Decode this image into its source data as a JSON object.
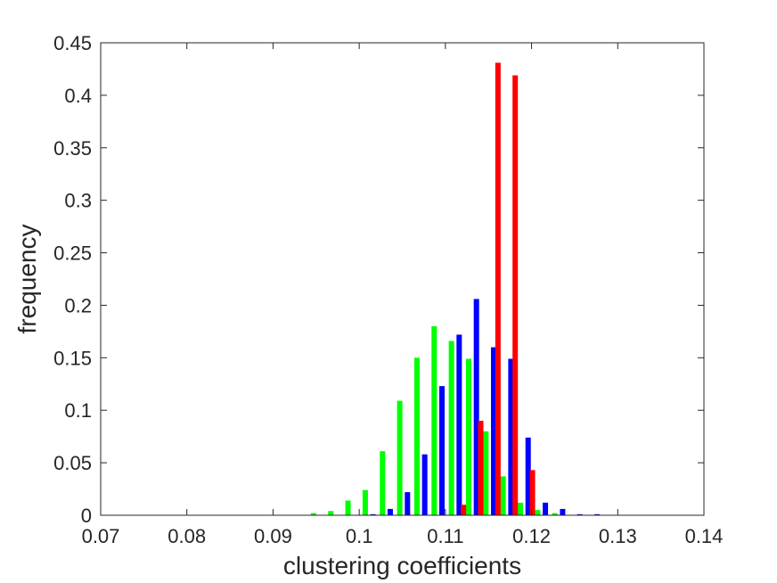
{
  "chart_data": {
    "type": "bar",
    "title": "",
    "xlabel": "clustering coefficients",
    "ylabel": "frequency",
    "xlim": [
      0.07,
      0.14
    ],
    "ylim": [
      0,
      0.45
    ],
    "xticks": [
      0.07,
      0.08,
      0.09,
      0.1,
      0.11,
      0.12,
      0.13,
      0.14
    ],
    "xtick_labels": [
      "0.07",
      "0.08",
      "0.09",
      "0.1",
      "0.11",
      "0.12",
      "0.13",
      "0.14"
    ],
    "yticks": [
      0,
      0.05,
      0.1,
      0.15,
      0.2,
      0.25,
      0.3,
      0.35,
      0.4,
      0.45
    ],
    "ytick_labels": [
      "0",
      "0.05",
      "0.1",
      "0.15",
      "0.2",
      "0.25",
      "0.3",
      "0.35",
      "0.4",
      "0.45"
    ],
    "grid": false,
    "legend": "none",
    "bin_width": 0.002,
    "series": [
      {
        "color": "#00ff00",
        "x": [
          0.0947,
          0.0967,
          0.0987,
          0.1007,
          0.1027,
          0.1047,
          0.1067,
          0.1087,
          0.1107,
          0.1127,
          0.1147,
          0.1167,
          0.1187,
          0.1207,
          0.1227
        ],
        "values": [
          0.002,
          0.004,
          0.014,
          0.024,
          0.061,
          0.109,
          0.15,
          0.18,
          0.166,
          0.149,
          0.08,
          0.037,
          0.012,
          0.005,
          0.002
        ]
      },
      {
        "color": "#0000ff",
        "x": [
          0.1016,
          0.1036,
          0.1056,
          0.1076,
          0.1096,
          0.1116,
          0.1136,
          0.1156,
          0.1176,
          0.1196,
          0.1216,
          0.1236,
          0.1256,
          0.1276
        ],
        "values": [
          0.001,
          0.006,
          0.022,
          0.058,
          0.123,
          0.172,
          0.206,
          0.16,
          0.149,
          0.074,
          0.012,
          0.006,
          0.001,
          0.001
        ]
      },
      {
        "color": "#ff0000",
        "x": [
          0.1121,
          0.1141,
          0.1161,
          0.1181,
          0.1201
        ],
        "values": [
          0.01,
          0.09,
          0.431,
          0.419,
          0.043
        ]
      }
    ]
  }
}
